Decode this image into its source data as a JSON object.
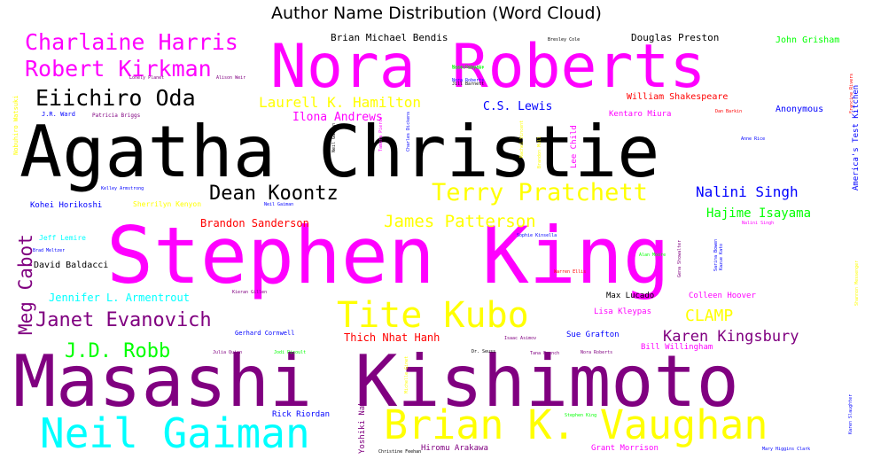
{
  "chart_data": {
    "type": "wordcloud",
    "title": "Author Name Distribution (Word Cloud)",
    "colors": {
      "magenta": "#ff00ff",
      "black": "#000000",
      "purple": "#800080",
      "cyan": "#00ffff",
      "yellow": "#ffff00",
      "green": "#00ff00",
      "blue": "#0000ff",
      "red": "#ff0000"
    },
    "words": [
      {
        "text": "Stephen King",
        "weight": 100,
        "color": "magenta",
        "rotate": 0
      },
      {
        "text": "Agatha Christie",
        "weight": 96,
        "color": "black",
        "rotate": 0
      },
      {
        "text": "Masashi Kishimoto",
        "weight": 92,
        "color": "purple",
        "rotate": 0
      },
      {
        "text": "Nora Roberts",
        "weight": 80,
        "color": "magenta",
        "rotate": 0
      },
      {
        "text": "Brian K. Vaughan",
        "weight": 50,
        "color": "yellow",
        "rotate": 0
      },
      {
        "text": "Neil Gaiman",
        "weight": 50,
        "color": "cyan",
        "rotate": 0
      },
      {
        "text": "Tite Kubo",
        "weight": 44,
        "color": "yellow",
        "rotate": 0
      },
      {
        "text": "Terry Pratchett",
        "weight": 30,
        "color": "yellow",
        "rotate": 0
      },
      {
        "text": "Charlaine Harris",
        "weight": 29,
        "color": "magenta",
        "rotate": 0
      },
      {
        "text": "Robert Kirkman",
        "weight": 29,
        "color": "magenta",
        "rotate": 0
      },
      {
        "text": "Eiichiro Oda",
        "weight": 27,
        "color": "black",
        "rotate": 0
      },
      {
        "text": "Dean Koontz",
        "weight": 25,
        "color": "black",
        "rotate": 0
      },
      {
        "text": "Janet Evanovich",
        "weight": 25,
        "color": "purple",
        "rotate": 0
      },
      {
        "text": "J.D. Robb",
        "weight": 25,
        "color": "green",
        "rotate": 0
      },
      {
        "text": "Meg Cabot",
        "weight": 23,
        "color": "purple",
        "rotate": -90
      },
      {
        "text": "James Patterson",
        "weight": 20,
        "color": "yellow",
        "rotate": 0
      },
      {
        "text": "CLAMP",
        "weight": 20,
        "color": "yellow",
        "rotate": 0
      },
      {
        "text": "Karen Kingsbury",
        "weight": 19,
        "color": "purple",
        "rotate": 0
      },
      {
        "text": "Laurell K. Hamilton",
        "weight": 18,
        "color": "yellow",
        "rotate": 0
      },
      {
        "text": "Nalini Singh",
        "weight": 18,
        "color": "blue",
        "rotate": 0
      },
      {
        "text": "Hajime Isayama",
        "weight": 16,
        "color": "green",
        "rotate": 0
      },
      {
        "text": "Ilona Andrews",
        "weight": 14,
        "color": "magenta",
        "rotate": 0
      },
      {
        "text": "C.S. Lewis",
        "weight": 14,
        "color": "blue",
        "rotate": 0
      },
      {
        "text": "Brandon Sanderson",
        "weight": 13,
        "color": "red",
        "rotate": 0
      },
      {
        "text": "Jennifer L. Armentrout",
        "weight": 13,
        "color": "cyan",
        "rotate": 0
      },
      {
        "text": "Thich Nhat Hanh",
        "weight": 13,
        "color": "red",
        "rotate": 0
      },
      {
        "text": "Brian Michael Bendis",
        "weight": 12,
        "color": "black",
        "rotate": 0
      },
      {
        "text": "Douglas Preston",
        "weight": 12,
        "color": "black",
        "rotate": 0
      },
      {
        "text": "John Grisham",
        "weight": 11,
        "color": "green",
        "rotate": 0
      },
      {
        "text": "William Shakespeare",
        "weight": 11,
        "color": "red",
        "rotate": 0
      },
      {
        "text": "Anonymous",
        "weight": 11,
        "color": "blue",
        "rotate": 0
      },
      {
        "text": "David Baldacci",
        "weight": 10,
        "color": "black",
        "rotate": 0
      },
      {
        "text": "Max Lucado",
        "weight": 10,
        "color": "black",
        "rotate": 0
      },
      {
        "text": "Colleen Hoover",
        "weight": 10,
        "color": "magenta",
        "rotate": 0
      },
      {
        "text": "Lisa Kleypas",
        "weight": 10,
        "color": "magenta",
        "rotate": 0
      },
      {
        "text": "Sue Grafton",
        "weight": 10,
        "color": "blue",
        "rotate": 0
      },
      {
        "text": "Rick Riordan",
        "weight": 10,
        "color": "blue",
        "rotate": 0
      },
      {
        "text": "Hiromu Arakawa",
        "weight": 10,
        "color": "purple",
        "rotate": 0
      },
      {
        "text": "Grant Morrison",
        "weight": 10,
        "color": "magenta",
        "rotate": 0
      },
      {
        "text": "Bill Willingham",
        "weight": 10,
        "color": "magenta",
        "rotate": 0
      },
      {
        "text": "Kentaro Miura",
        "weight": 10,
        "color": "magenta",
        "rotate": 0
      },
      {
        "text": "Kohei Horikoshi",
        "weight": 10,
        "color": "blue",
        "rotate": 0
      },
      {
        "text": "Jeff Lemire",
        "weight": 9,
        "color": "cyan",
        "rotate": 0
      },
      {
        "text": "Yoshiki Nakamura",
        "weight": 10,
        "color": "purple",
        "rotate": -90
      },
      {
        "text": "Lee Child",
        "weight": 10,
        "color": "magenta",
        "rotate": -90
      },
      {
        "text": "America's Test Kitchen",
        "weight": 10,
        "color": "blue",
        "rotate": -90
      },
      {
        "text": "Sherrilyn Kenyon",
        "weight": 9,
        "color": "yellow",
        "rotate": 0
      },
      {
        "text": "Patricia Briggs",
        "weight": 8,
        "color": "purple",
        "rotate": 0
      },
      {
        "text": "Lonely Planet",
        "weight": 7,
        "color": "purple",
        "rotate": 0
      },
      {
        "text": "Alison Weir",
        "weight": 7,
        "color": "purple",
        "rotate": 0
      },
      {
        "text": "J.R. Ward",
        "weight": 8,
        "color": "blue",
        "rotate": 0
      },
      {
        "text": "Gerhard Cornwell",
        "weight": 8,
        "color": "blue",
        "rotate": 0
      },
      {
        "text": "Julia Quinn",
        "weight": 7,
        "color": "purple",
        "rotate": 0
      },
      {
        "text": "Jodi Picoult",
        "weight": 7,
        "color": "green",
        "rotate": 0
      },
      {
        "text": "Dr. Seuss",
        "weight": 7,
        "color": "black",
        "rotate": 0
      },
      {
        "text": "Isaac Asimov",
        "weight": 7,
        "color": "purple",
        "rotate": 0
      },
      {
        "text": "Nora Roberts",
        "weight": 7,
        "color": "purple",
        "rotate": 0
      },
      {
        "text": "Christine Feehan",
        "weight": 7,
        "color": "black",
        "rotate": 0
      },
      {
        "text": "Nora Roberts",
        "weight": 7,
        "color": "green",
        "rotate": 0
      },
      {
        "text": "Nora Roberts",
        "weight": 7,
        "color": "blue",
        "rotate": 0
      },
      {
        "text": "Bresley Cole",
        "weight": 7,
        "color": "black",
        "rotate": 0
      },
      {
        "text": "Scott Snyder",
        "weight": 7,
        "color": "green",
        "rotate": 0
      },
      {
        "text": "Jill Barnett",
        "weight": 7,
        "color": "black",
        "rotate": 0
      },
      {
        "text": "Kelley Armstrong",
        "weight": 7,
        "color": "blue",
        "rotate": 0
      },
      {
        "text": "Neil Gaiman",
        "weight": 7,
        "color": "blue",
        "rotate": 0
      },
      {
        "text": "Dan Barkin",
        "weight": 7,
        "color": "red",
        "rotate": 0
      },
      {
        "text": "Anne Rice",
        "weight": 7,
        "color": "blue",
        "rotate": 0
      },
      {
        "text": "Warren Ellis",
        "weight": 7,
        "color": "red",
        "rotate": 0
      },
      {
        "text": "Alan Moore",
        "weight": 7,
        "color": "green",
        "rotate": 0
      },
      {
        "text": "Mary Higgins Clark",
        "weight": 7,
        "color": "blue",
        "rotate": 0
      },
      {
        "text": "Kieran Gillen",
        "weight": 7,
        "color": "purple",
        "rotate": 0
      },
      {
        "text": "Nalini Singh",
        "weight": 7,
        "color": "magenta",
        "rotate": 0
      },
      {
        "text": "Tana French",
        "weight": 7,
        "color": "purple",
        "rotate": 0
      },
      {
        "text": "Sophie Kinsella",
        "weight": 7,
        "color": "blue",
        "rotate": 0
      },
      {
        "text": "Stephen King",
        "weight": 7,
        "color": "green",
        "rotate": 0
      },
      {
        "text": "Brad Meltzer",
        "weight": 7,
        "color": "blue",
        "rotate": 0
      },
      {
        "text": "Nobuhiro Watsuki",
        "weight": 9,
        "color": "yellow",
        "rotate": -90
      },
      {
        "text": "Neil Gaiman",
        "weight": 7,
        "color": "black",
        "rotate": -90
      },
      {
        "text": "Tamora Pierce",
        "weight": 7,
        "color": "magenta",
        "rotate": -90
      },
      {
        "text": "Charles Dickens",
        "weight": 7,
        "color": "blue",
        "rotate": -90
      },
      {
        "text": "Kazue Kato",
        "weight": 7,
        "color": "blue",
        "rotate": -90
      },
      {
        "text": "Gena Showalter",
        "weight": 7,
        "color": "purple",
        "rotate": -90
      },
      {
        "text": "Sarina Bowen",
        "weight": 7,
        "color": "blue",
        "rotate": -90
      },
      {
        "text": "Francine Rivers",
        "weight": 7,
        "color": "red",
        "rotate": -90
      },
      {
        "text": "Karen Slaughter",
        "weight": 7,
        "color": "blue",
        "rotate": -90
      },
      {
        "text": "Michelle Ginet",
        "weight": 7,
        "color": "yellow",
        "rotate": -90
      },
      {
        "text": "Rachel Vincent",
        "weight": 7,
        "color": "yellow",
        "rotate": -90
      },
      {
        "text": "Shannon Messenger",
        "weight": 7,
        "color": "yellow",
        "rotate": -90
      },
      {
        "text": "Brandon Mull",
        "weight": 7,
        "color": "yellow",
        "rotate": -90
      }
    ]
  }
}
